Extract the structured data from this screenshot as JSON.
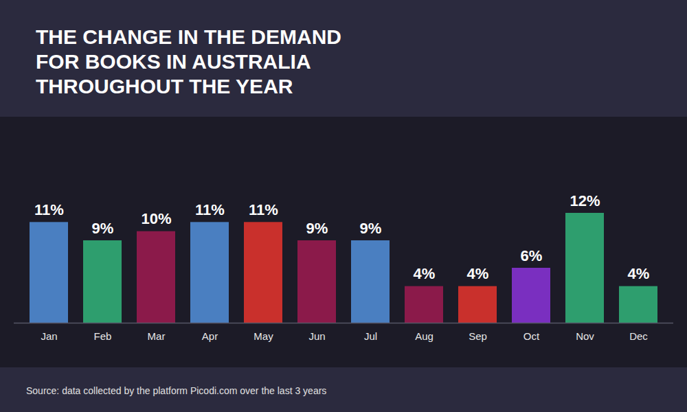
{
  "chart_data": {
    "type": "bar",
    "title": "THE CHANGE IN THE DEMAND FOR BOOKS IN AUSTRALIA THROUGHOUT THE YEAR",
    "caption": "Source: data collected by the platform Picodi.com over the last 3 years",
    "categories": [
      "Jan",
      "Feb",
      "Mar",
      "Apr",
      "May",
      "Jun",
      "Jul",
      "Aug",
      "Sep",
      "Oct",
      "Nov",
      "Dec"
    ],
    "values": [
      11,
      9,
      10,
      11,
      11,
      9,
      9,
      4,
      4,
      6,
      12,
      4
    ],
    "value_labels": [
      "11%",
      "9%",
      "10%",
      "11%",
      "11%",
      "9%",
      "9%",
      "4%",
      "4%",
      "6%",
      "12%",
      "4%"
    ],
    "colors": [
      "#4a7fc1",
      "#2e9e6e",
      "#8b1a4a",
      "#4a7fc1",
      "#c9302c",
      "#8b1a4a",
      "#4a7fc1",
      "#8b1a4a",
      "#c9302c",
      "#7a2fc0",
      "#2e9e6e",
      "#2e9e6e"
    ],
    "ylim": [
      0,
      12
    ],
    "data_labels": true,
    "tick_labels": "x"
  }
}
